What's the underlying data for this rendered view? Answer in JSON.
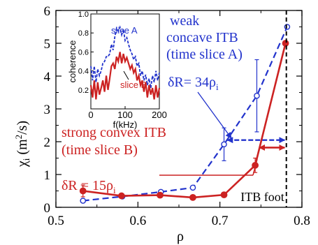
{
  "colors": {
    "case_a": "#2233cc",
    "case_b": "#cc2222",
    "axis": "#000000"
  },
  "chart_data": [
    {
      "type": "line",
      "xlabel": "ρ",
      "ylabel": "χi (m2/s)",
      "xlim": [
        0.5,
        0.8
      ],
      "ylim": [
        0,
        6
      ],
      "xticks": [
        "0.5",
        "0.6",
        "0.7",
        "0.8"
      ],
      "yticks": [
        "0",
        "1",
        "2",
        "3",
        "4",
        "5",
        "6"
      ],
      "grid": false,
      "series": [
        {
          "key": "a",
          "style": "dashed",
          "marker": "open-circle",
          "x": [
            0.533,
            0.581,
            0.628,
            0.667,
            0.705,
            0.745,
            0.782
          ],
          "y": [
            0.2,
            0.33,
            0.47,
            0.6,
            1.92,
            3.4,
            5.5
          ],
          "yerr": [
            0,
            0,
            0,
            0,
            0.5,
            1.1,
            0
          ]
        },
        {
          "key": "b",
          "style": "solid",
          "marker": "filled-circle",
          "x": [
            0.533,
            0.58,
            0.627,
            0.667,
            0.705,
            0.743,
            0.78
          ],
          "y": [
            0.5,
            0.35,
            0.37,
            0.3,
            0.38,
            1.28,
            5.0
          ],
          "yerr": [
            0.18,
            0,
            0,
            0,
            0,
            0.22,
            0
          ]
        }
      ],
      "annotations": {
        "weak_lines": [
          "weak",
          "concave ITB",
          "(time slice A)"
        ],
        "weak_dr": "δR= 34ρi",
        "strong_lines": [
          "strong convex ITB",
          "(time slice B)"
        ],
        "strong_dr": "δR = 15ρi",
        "itb_foot": "ITB foot",
        "itb_foot_x": 0.781,
        "arrow_a_x": [
          0.709,
          0.779
        ],
        "arrow_a_y": 2.05,
        "arrow_b_x": [
          0.748,
          0.779
        ],
        "arrow_b_y": 1.82
      }
    },
    {
      "type": "line",
      "role": "inset",
      "xlabel": "f(kHz)",
      "ylabel": "coherence",
      "xlim": [
        0,
        200
      ],
      "ylim": [
        0,
        1.0
      ],
      "xticks": [
        "0",
        "100",
        "200"
      ],
      "yticks": [
        "0.2",
        "0.4",
        "0.6",
        "0.8",
        "1.0"
      ],
      "series": [
        {
          "name": "slice A",
          "style": "dashed",
          "x": [
            0,
            5,
            10,
            15,
            20,
            25,
            30,
            35,
            40,
            45,
            50,
            55,
            60,
            65,
            70,
            75,
            80,
            85,
            90,
            95,
            100,
            105,
            110,
            115,
            120,
            125,
            130,
            135,
            140,
            145,
            150,
            155,
            160,
            165,
            170,
            175,
            180,
            185,
            190,
            195,
            200
          ],
          "y": [
            0.45,
            0.3,
            0.45,
            0.28,
            0.42,
            0.35,
            0.4,
            0.48,
            0.5,
            0.55,
            0.55,
            0.58,
            0.68,
            0.62,
            0.76,
            0.85,
            0.82,
            0.86,
            0.78,
            0.84,
            0.72,
            0.75,
            0.68,
            0.62,
            0.58,
            0.52,
            0.55,
            0.45,
            0.48,
            0.35,
            0.4,
            0.3,
            0.36,
            0.25,
            0.32,
            0.22,
            0.35,
            0.28,
            0.4,
            0.3,
            0.38
          ]
        },
        {
          "name": "slice B",
          "style": "solid",
          "x": [
            0,
            5,
            10,
            15,
            20,
            25,
            30,
            35,
            40,
            45,
            50,
            55,
            60,
            65,
            70,
            75,
            80,
            85,
            90,
            95,
            100,
            105,
            110,
            115,
            120,
            125,
            130,
            135,
            140,
            145,
            150,
            155,
            160,
            165,
            170,
            175,
            180,
            185,
            190,
            195,
            200
          ],
          "y": [
            0.25,
            0.12,
            0.3,
            0.1,
            0.28,
            0.15,
            0.22,
            0.3,
            0.18,
            0.35,
            0.2,
            0.32,
            0.45,
            0.48,
            0.42,
            0.55,
            0.5,
            0.6,
            0.48,
            0.58,
            0.5,
            0.54,
            0.48,
            0.42,
            0.46,
            0.38,
            0.42,
            0.3,
            0.35,
            0.25,
            0.3,
            0.18,
            0.28,
            0.12,
            0.25,
            0.15,
            0.22,
            0.1,
            0.25,
            0.12,
            0.22
          ]
        }
      ]
    }
  ]
}
